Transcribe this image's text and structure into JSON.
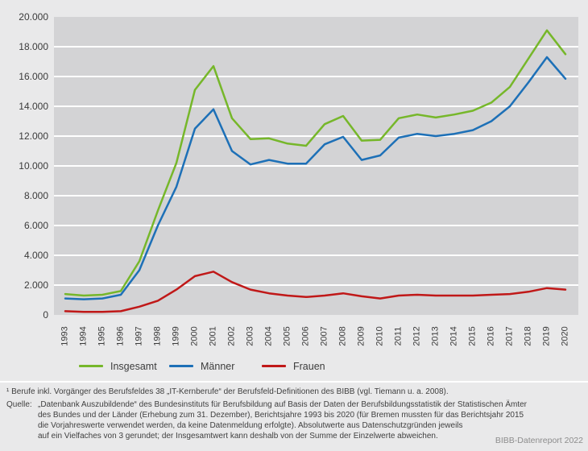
{
  "chart_data": {
    "type": "line",
    "x": [
      1993,
      1994,
      1995,
      1996,
      1997,
      1998,
      1999,
      2000,
      2001,
      2002,
      2003,
      2004,
      2005,
      2006,
      2007,
      2008,
      2009,
      2010,
      2011,
      2012,
      2013,
      2014,
      2015,
      2016,
      2017,
      2018,
      2019,
      2020
    ],
    "series": [
      {
        "name": "Insgesamt",
        "color": "#76b72a",
        "values": [
          1400,
          1300,
          1350,
          1600,
          3600,
          7000,
          10200,
          15100,
          16700,
          13200,
          11800,
          11850,
          11500,
          11350,
          12800,
          13350,
          11700,
          11750,
          13200,
          13450,
          13250,
          13450,
          13700,
          14250,
          15300,
          17200,
          19100,
          17500
        ]
      },
      {
        "name": "Männer",
        "color": "#1d70b7",
        "values": [
          1100,
          1050,
          1100,
          1350,
          3000,
          6000,
          8600,
          12500,
          13800,
          11000,
          10100,
          10400,
          10150,
          10150,
          11450,
          11950,
          10400,
          10700,
          11900,
          12150,
          12000,
          12150,
          12400,
          13000,
          14000,
          15600,
          17300,
          15850
        ]
      },
      {
        "name": "Frauen",
        "color": "#c01818",
        "values": [
          250,
          200,
          200,
          250,
          550,
          950,
          1700,
          2600,
          2900,
          2200,
          1700,
          1450,
          1300,
          1200,
          1300,
          1450,
          1250,
          1100,
          1300,
          1350,
          1300,
          1300,
          1300,
          1350,
          1400,
          1550,
          1800,
          1700
        ]
      }
    ],
    "title": "",
    "xlabel": "",
    "ylabel": "",
    "ylim": [
      0,
      20000
    ],
    "ytick_step": 2000,
    "ytick_labels": [
      "0",
      "2.000",
      "4.000",
      "6.000",
      "8.000",
      "10.000",
      "12.000",
      "14.000",
      "16.000",
      "18.000",
      "20.000"
    ],
    "grid": "horizontal white gridlines on gray plot background",
    "legend_position": "bottom-left"
  },
  "footer": {
    "footnote": "¹ Berufe inkl. Vorgänger des Berufsfeldes 38 „IT-Kernberufe“ der Berufsfeld-Definitionen des BIBB (vgl. Tiemann u. a. 2008).",
    "source_label": "Quelle:",
    "source_lines": [
      "„Datenbank Auszubildende“ des Bundesinstituts für Berufsbildung auf Basis der Daten der Berufsbildungsstatistik der Statistischen Ämter",
      "des Bundes und der Länder (Erhebung zum 31. Dezember), Berichtsjahre 1993 bis 2020 (für Bremen mussten für das Berichtsjahr 2015",
      "die Vorjahreswerte verwendet werden, da keine Datenmeldung erfolgte).  Absolutwerte aus Datenschutzgründen jeweils",
      "auf ein Vielfaches von 3 gerundet; der Insgesamtwert kann deshalb von der Summe der Einzelwerte abweichen."
    ],
    "report_credit": "BIBB-Datenreport 2022"
  },
  "colors": {
    "page_background": "#e9e9ea",
    "plot_background": "#d3d3d5",
    "gridline": "#ffffff",
    "series_insgesamt": "#76b72a",
    "series_maenner": "#1d70b7",
    "series_frauen": "#c01818",
    "axis_text": "#3b3b3b",
    "footer_text": "#3f3f3f",
    "credit_text": "#8c8c8c"
  }
}
